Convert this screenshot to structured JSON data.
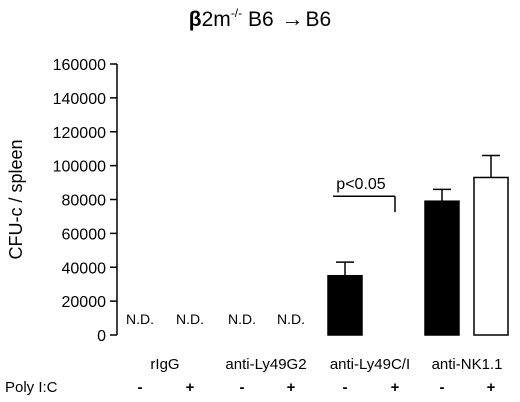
{
  "title": {
    "beta": "β",
    "genotype_base": "2m",
    "superscript": "-/-",
    "donor_strain": "B6",
    "arrow": "→",
    "recipient_strain": "B6"
  },
  "chart_data": {
    "type": "bar",
    "ylabel": "CFU-c / spleen",
    "ylim": [
      0,
      160000
    ],
    "yticks": [
      0,
      20000,
      40000,
      60000,
      80000,
      100000,
      120000,
      140000,
      160000
    ],
    "groups": [
      "rIgG",
      "anti-Ly49G2",
      "anti-Ly49C/I",
      "anti-NK1.1"
    ],
    "row_label": "Poly I:C",
    "treatment_levels": [
      "-",
      "+"
    ],
    "bars": [
      {
        "group": "rIgG",
        "polyIC": "-",
        "value": null,
        "error": null,
        "label": "N.D.",
        "fill": "none"
      },
      {
        "group": "rIgG",
        "polyIC": "+",
        "value": null,
        "error": null,
        "label": "N.D.",
        "fill": "none"
      },
      {
        "group": "anti-Ly49G2",
        "polyIC": "-",
        "value": null,
        "error": null,
        "label": "N.D.",
        "fill": "none"
      },
      {
        "group": "anti-Ly49G2",
        "polyIC": "+",
        "value": null,
        "error": null,
        "label": "N.D.",
        "fill": "none"
      },
      {
        "group": "anti-Ly49C/I",
        "polyIC": "-",
        "value": 35000,
        "error": 8000,
        "label": "",
        "fill": "black"
      },
      {
        "group": "anti-Ly49C/I",
        "polyIC": "+",
        "value": 0,
        "error": 0,
        "label": "",
        "fill": "none"
      },
      {
        "group": "anti-NK1.1",
        "polyIC": "-",
        "value": 79000,
        "error": 7000,
        "label": "",
        "fill": "black"
      },
      {
        "group": "anti-NK1.1",
        "polyIC": "+",
        "value": 93000,
        "error": 13000,
        "label": "",
        "fill": "white"
      }
    ],
    "annotation": {
      "text": "p<0.05",
      "group": "anti-Ly49C/I",
      "bracket_y": 79000
    },
    "colors": {
      "filled": "#000000",
      "open": "#ffffff",
      "stroke": "#000000"
    }
  }
}
